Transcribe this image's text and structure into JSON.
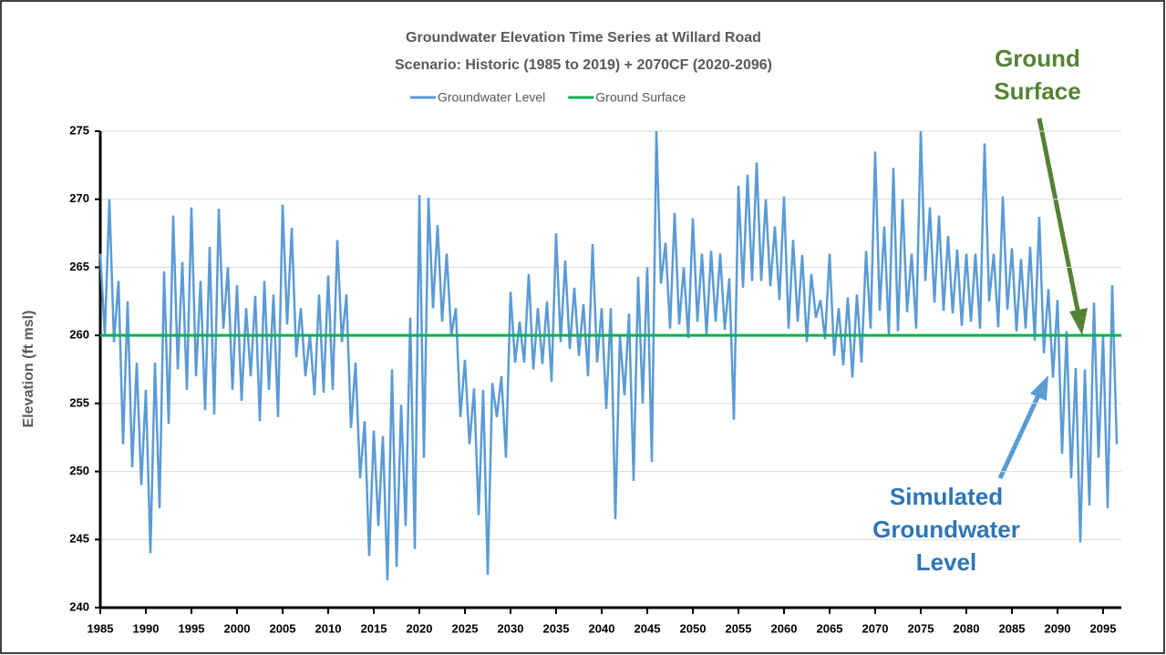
{
  "chart_data": {
    "type": "line",
    "title": [
      "Groundwater Elevation Time Series at Willard Road",
      "Scenario: Historic (1985 to 2019) + 2070CF (2020-2096)"
    ],
    "y_label": "Elevation (ft msl)",
    "xlim": [
      1985,
      2097
    ],
    "xticks": [
      1985,
      1990,
      1995,
      2000,
      2005,
      2010,
      2015,
      2020,
      2025,
      2030,
      2035,
      2040,
      2045,
      2050,
      2055,
      2060,
      2065,
      2070,
      2075,
      2080,
      2085,
      2090,
      2095
    ],
    "ylim": [
      240,
      275
    ],
    "yticks": [
      240,
      245,
      250,
      255,
      260,
      265,
      270,
      275
    ],
    "grid": true,
    "legend": "top",
    "series": [
      {
        "name": "Groundwater Level",
        "color": "#5b9bd5",
        "x": [
          1985,
          1985.5,
          1986,
          1986.5,
          1987,
          1987.5,
          1988,
          1988.5,
          1989,
          1989.5,
          1990,
          1990.5,
          1991,
          1991.5,
          1992,
          1992.5,
          1993,
          1993.5,
          1994,
          1994.5,
          1995,
          1995.5,
          1996,
          1996.5,
          1997,
          1997.5,
          1998,
          1998.5,
          1999,
          1999.5,
          2000,
          2000.5,
          2001,
          2001.5,
          2002,
          2002.5,
          2003,
          2003.5,
          2004,
          2004.5,
          2005,
          2005.5,
          2006,
          2006.5,
          2007,
          2007.5,
          2008,
          2008.5,
          2009,
          2009.5,
          2010,
          2010.5,
          2011,
          2011.5,
          2012,
          2012.5,
          2013,
          2013.5,
          2014,
          2014.5,
          2015,
          2015.5,
          2016,
          2016.5,
          2017,
          2017.5,
          2018,
          2018.5,
          2019,
          2019.5,
          2020,
          2020.5,
          2021,
          2021.5,
          2022,
          2022.5,
          2023,
          2023.5,
          2024,
          2024.5,
          2025,
          2025.5,
          2026,
          2026.5,
          2027,
          2027.5,
          2028,
          2028.5,
          2029,
          2029.5,
          2030,
          2030.5,
          2031,
          2031.5,
          2032,
          2032.5,
          2033,
          2033.5,
          2034,
          2034.5,
          2035,
          2035.5,
          2036,
          2036.5,
          2037,
          2037.5,
          2038,
          2038.5,
          2039,
          2039.5,
          2040,
          2040.5,
          2041,
          2041.5,
          2042,
          2042.5,
          2043,
          2043.5,
          2044,
          2044.5,
          2045,
          2045.5,
          2046,
          2046.5,
          2047,
          2047.5,
          2048,
          2048.5,
          2049,
          2049.5,
          2050,
          2050.5,
          2051,
          2051.5,
          2052,
          2052.5,
          2053,
          2053.5,
          2054,
          2054.5,
          2055,
          2055.5,
          2056,
          2056.5,
          2057,
          2057.5,
          2058,
          2058.5,
          2059,
          2059.5,
          2060,
          2060.5,
          2061,
          2061.5,
          2062,
          2062.5,
          2063,
          2063.5,
          2064,
          2064.5,
          2065,
          2065.5,
          2066,
          2066.5,
          2067,
          2067.5,
          2068,
          2068.5,
          2069,
          2069.5,
          2070,
          2070.5,
          2071,
          2071.5,
          2072,
          2072.5,
          2073,
          2073.5,
          2074,
          2074.5,
          2075,
          2075.5,
          2076,
          2076.5,
          2077,
          2077.5,
          2078,
          2078.5,
          2079,
          2079.5,
          2080,
          2080.5,
          2081,
          2081.5,
          2082,
          2082.5,
          2083,
          2083.5,
          2084,
          2084.5,
          2085,
          2085.5,
          2086,
          2086.5,
          2087,
          2087.5,
          2088,
          2088.5,
          2089,
          2089.5,
          2090,
          2090.5,
          2091,
          2091.5,
          2092,
          2092.5,
          2093,
          2093.5,
          2094,
          2094.5,
          2095,
          2095.5,
          2096,
          2096.5
        ],
        "values": [
          266,
          260,
          270,
          259.5,
          264,
          252,
          262.5,
          250.3,
          258,
          249,
          256,
          244,
          258,
          247.3,
          264.7,
          253.5,
          268.8,
          257.5,
          265.4,
          256,
          269.4,
          257,
          264,
          254.5,
          266.5,
          254.2,
          269.3,
          260.5,
          265,
          256,
          263.7,
          255.2,
          262,
          257,
          262.9,
          253.7,
          264,
          256,
          263,
          254,
          269.6,
          260.8,
          267.9,
          258.4,
          262,
          257,
          260,
          255.6,
          263,
          255.8,
          264.4,
          256,
          267,
          259.5,
          263,
          253.2,
          258,
          249.5,
          253.7,
          243.8,
          253,
          246,
          252.6,
          242,
          257.5,
          243,
          254.9,
          246,
          261.3,
          244.3,
          270.3,
          251,
          270.1,
          262,
          268.1,
          261,
          266,
          260,
          262,
          254,
          258.2,
          252,
          256.1,
          246.8,
          256,
          242.4,
          256.5,
          254,
          257,
          251,
          263.2,
          258,
          261,
          258,
          264.5,
          257.5,
          262,
          257.9,
          262.5,
          256.6,
          267.5,
          259.5,
          265.5,
          259,
          263.5,
          258.5,
          262.3,
          257,
          266.7,
          258,
          262,
          254.6,
          262,
          246.5,
          260,
          255.6,
          261.6,
          249.3,
          264.3,
          255,
          265,
          250.7,
          275,
          263.8,
          266.8,
          260.5,
          269,
          260.8,
          265,
          259.8,
          268.6,
          261,
          266,
          260,
          266.2,
          261,
          266,
          260.4,
          264.2,
          253.8,
          271,
          263.5,
          271.8,
          264,
          272.7,
          264,
          270,
          263.6,
          268,
          262.6,
          270.2,
          260.5,
          267,
          261,
          265.9,
          259.5,
          264.5,
          261.3,
          262.6,
          259.7,
          266,
          258.5,
          262,
          257.8,
          262.8,
          256.9,
          263,
          258,
          266.2,
          260.5,
          273.5,
          261.8,
          268,
          260,
          272.3,
          260.3,
          270,
          261.7,
          266,
          260.5,
          275,
          264,
          269.4,
          262.4,
          268.8,
          261.8,
          267.3,
          261.6,
          266.3,
          260.7,
          266,
          261,
          266,
          260.5,
          274.1,
          262.5,
          266,
          260.6,
          270.2,
          261.9,
          266.4,
          260.3,
          265.6,
          260.5,
          266.5,
          259.6,
          268.7,
          258.7,
          263.4,
          256.9,
          262.6,
          251.3,
          260.3,
          249.5,
          257.6,
          244.8,
          257.5,
          247.5,
          262.4,
          251,
          260,
          247.3,
          263.7,
          252
        ]
      },
      {
        "name": "Ground Surface",
        "color": "#00b050",
        "x": [
          1985,
          2097
        ],
        "values": [
          260,
          260
        ]
      }
    ],
    "annotations": [
      {
        "lines": [
          "Ground",
          "Surface"
        ],
        "color": "#548235"
      },
      {
        "lines": [
          "Simulated",
          "Groundwater",
          "Level"
        ],
        "color": "#2e75b6"
      }
    ]
  }
}
